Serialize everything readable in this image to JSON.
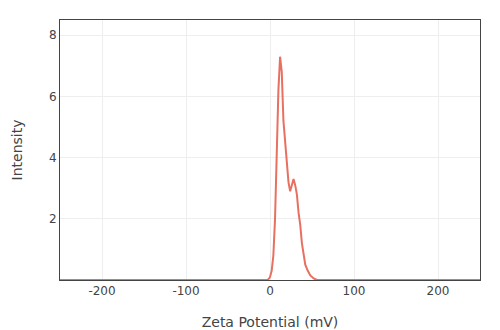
{
  "chart_data": {
    "type": "line",
    "xlabel": "Zeta Potential (mV)",
    "ylabel": "Intensity",
    "x": [
      -250,
      -10,
      -5,
      -3,
      -1,
      0,
      2,
      4,
      6,
      8,
      10,
      12,
      14,
      16,
      18,
      20,
      22,
      24,
      26,
      28,
      30,
      32,
      34,
      36,
      38,
      40,
      42,
      45,
      48,
      52,
      56,
      60,
      250
    ],
    "values": [
      0,
      0,
      0,
      0,
      0.05,
      0.1,
      0.3,
      0.8,
      2.0,
      4.5,
      6.2,
      7.3,
      6.8,
      5.2,
      4.5,
      3.8,
      3.2,
      2.9,
      3.1,
      3.3,
      3.1,
      2.8,
      2.2,
      1.8,
      1.2,
      0.8,
      0.5,
      0.3,
      0.15,
      0.05,
      0.0,
      0,
      0
    ],
    "color": "#e87060",
    "xlim": [
      -250,
      250
    ],
    "ylim": [
      0,
      8.5
    ],
    "xticks": [
      -200,
      -100,
      0,
      100,
      200
    ],
    "yticks": [
      2,
      4,
      6,
      8
    ],
    "grid": true
  }
}
